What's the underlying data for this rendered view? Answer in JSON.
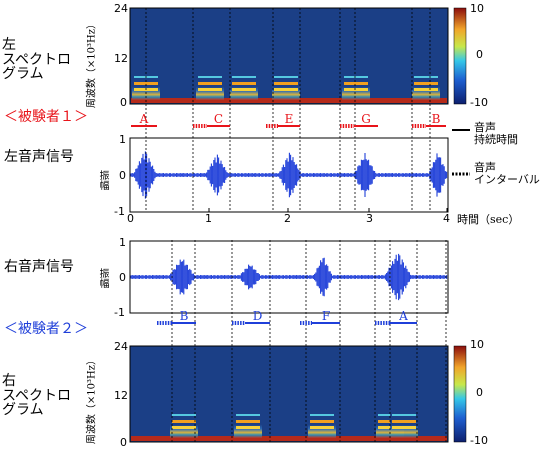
{
  "left_spectrogram": {
    "title_line1": "左",
    "title_line2": "スペクトロ",
    "title_line3": "グラム",
    "ylabel": "周波数（×10³Hz）",
    "yticks": [
      "24",
      "12",
      "0"
    ],
    "colorbar_ticks": [
      "10",
      "0",
      "-10"
    ]
  },
  "subject1": {
    "label": "＜被験者１＞",
    "color": "#e8141a"
  },
  "subject2": {
    "label": "＜被験者２＞",
    "color": "#1f3fd9"
  },
  "left_signal": {
    "title": "左音声信号",
    "ylabel": "振幅",
    "yticks": [
      "1",
      "0",
      "-1"
    ],
    "segments": [
      "A",
      "C",
      "E",
      "G",
      "B"
    ]
  },
  "right_signal": {
    "title": "右音声信号",
    "ylabel": "振幅",
    "yticks": [
      "1",
      "0",
      "-1"
    ],
    "segments": [
      "B",
      "D",
      "F",
      "A"
    ]
  },
  "time_axis": {
    "ticks": [
      "0",
      "1",
      "2",
      "3",
      "4"
    ],
    "label": "時間（sec）"
  },
  "legend": {
    "voice_duration": "音声\n持続時間",
    "voice_interval": "音声\nインターバル"
  },
  "right_spectrogram": {
    "title_line1": "右",
    "title_line2": "スペクトロ",
    "title_line3": "グラム",
    "ylabel": "周波数（×10³Hz）",
    "yticks": [
      "24",
      "12",
      "0"
    ],
    "colorbar_ticks": [
      "10",
      "0",
      "-10"
    ]
  },
  "colors": {
    "waveform": "#1f3fd9",
    "spectrogram_bg": "#1b3f86"
  }
}
